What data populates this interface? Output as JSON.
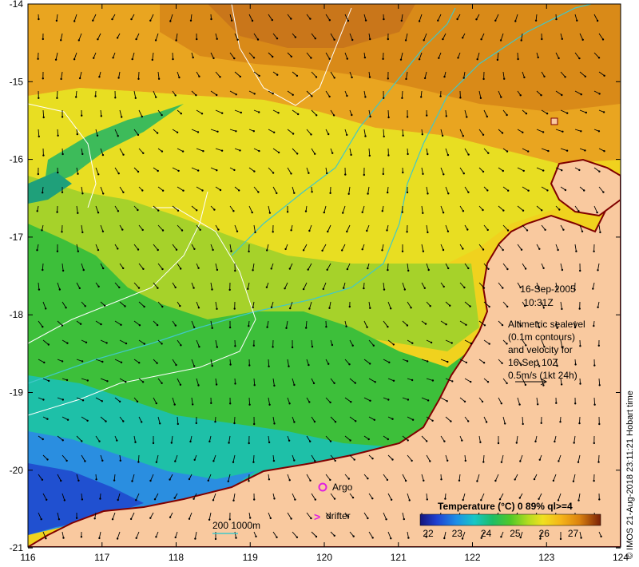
{
  "map": {
    "x_ticks": [
      "116",
      "117",
      "118",
      "119",
      "120",
      "121",
      "122",
      "123",
      "124"
    ],
    "y_ticks": [
      "-14",
      "-15",
      "-16",
      "-17",
      "-18",
      "-19",
      "-20",
      "-21"
    ],
    "lon_range": [
      116,
      124
    ],
    "lat_range": [
      -21,
      -14
    ]
  },
  "timestamp": {
    "date": "16-Sep-2005",
    "time": "10:31Z"
  },
  "altimetry_note": [
    "Altimetric sealevel",
    "(0.1m contours)",
    "and velocity for",
    "16-Sep 10Z",
    "0.5m/s (1kt 24h)"
  ],
  "legend": {
    "argo_label": "Argo",
    "drifter_label": "drifter",
    "drifter_symbol": ">",
    "bathy_label": "200  1000m"
  },
  "colorbar": {
    "title": "Temperature (°C) 0 89% ql>=4",
    "labels": [
      "22",
      "23",
      "24",
      "25",
      "26",
      "27"
    ],
    "colors": [
      "#1a1a8c",
      "#1f3fd0",
      "#1e90e6",
      "#19c8c8",
      "#1fbf6a",
      "#4cc82a",
      "#a8d820",
      "#f0e020",
      "#f5b818",
      "#e08a10",
      "#c86010",
      "#8c2808"
    ]
  },
  "credit": "© IMOS 21-Aug-2018 23:11:21 Hobart time",
  "colors": {
    "land": "#f9c99f",
    "coast": "#800000",
    "bathy": "#40c8c8",
    "contour": "#ffffff",
    "argo": "#e020e0"
  }
}
